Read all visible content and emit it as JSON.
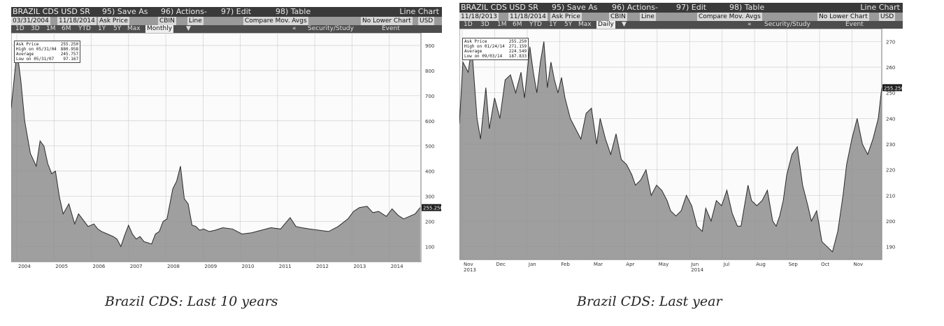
{
  "charts": [
    {
      "header": {
        "security": "BRAZIL CDS USD SR",
        "save_as": "95) Save As",
        "actions": "96) Actions-",
        "edit": "97) Edit",
        "table": "98) Table",
        "chart_type": "Line Chart",
        "start_date": "03/31/2004",
        "end_date": "11/18/2014",
        "field": "Ask Price",
        "source": "CBIN",
        "style": "Line",
        "compare": "Compare Mov. Avgs",
        "lower_chart": "No Lower Chart",
        "currency": "USD",
        "ranges": [
          "1D",
          "3D",
          "1M",
          "6M",
          "YTD",
          "1Y",
          "5Y",
          "Max"
        ],
        "period": "Monthly",
        "security_study": "Security/Study",
        "event": "Event"
      },
      "legend": [
        {
          "label": "Ask Price",
          "value": "255.250"
        },
        {
          "label": "High on 05/31/04",
          "value": "880.958"
        },
        {
          "label": "Average",
          "value": "245.757"
        },
        {
          "label": "Low on 05/31/07",
          "value": "97.167"
        }
      ],
      "last_value_tag": "255.250",
      "caption": "Brazil CDS: Last 10 years"
    },
    {
      "header": {
        "security": "BRAZIL CDS USD SR",
        "save_as": "95) Save As",
        "actions": "96) Actions-",
        "edit": "97) Edit",
        "table": "98) Table",
        "chart_type": "Line Chart",
        "start_date": "11/18/2013",
        "end_date": "11/18/2014",
        "field": "Ask Price",
        "source": "CBIN",
        "style": "Line",
        "compare": "Compare Mov. Avgs",
        "lower_chart": "No Lower Chart",
        "currency": "USD",
        "ranges": [
          "1D",
          "3D",
          "1M",
          "6M",
          "YTD",
          "1Y",
          "5Y",
          "Max"
        ],
        "period": "Daily",
        "security_study": "Security/Study",
        "event": "Event"
      },
      "legend": [
        {
          "label": "Ask Price",
          "value": "255.250"
        },
        {
          "label": "High on 01/24/14",
          "value": "271.159"
        },
        {
          "label": "Average",
          "value": "224.549"
        },
        {
          "label": "Low on 09/03/14",
          "value": "187.833"
        }
      ],
      "last_value_tag": "255.250",
      "caption": "Brazil CDS: Last year"
    }
  ],
  "chart_data": [
    {
      "type": "area",
      "title": "Brazil CDS: Last 10 years",
      "series_label": "Ask Price",
      "x_tick_labels": [
        "2004",
        "2005",
        "2006",
        "2007",
        "2008",
        "2009",
        "2010",
        "2011",
        "2012",
        "2013",
        "2014"
      ],
      "y_tick_labels": [
        "100",
        "200",
        "300",
        "400",
        "500",
        "600",
        "700",
        "800",
        "900"
      ],
      "ylim": [
        40,
        950
      ],
      "xlim": [
        2004.25,
        2014.9
      ],
      "grid": true,
      "legend_position": "top-left",
      "x": [
        2004.25,
        2004.4,
        2004.5,
        2004.6,
        2004.75,
        2004.9,
        2005.0,
        2005.1,
        2005.2,
        2005.3,
        2005.4,
        2005.5,
        2005.6,
        2005.75,
        2005.9,
        2006.0,
        2006.1,
        2006.25,
        2006.4,
        2006.5,
        2006.6,
        2006.75,
        2006.9,
        2007.0,
        2007.1,
        2007.2,
        2007.3,
        2007.4,
        2007.5,
        2007.6,
        2007.7,
        2007.8,
        2007.9,
        2008.0,
        2008.1,
        2008.2,
        2008.3,
        2008.45,
        2008.55,
        2008.65,
        2008.75,
        2008.85,
        2008.95,
        2009.05,
        2009.15,
        2009.25,
        2009.4,
        2009.55,
        2009.75,
        2010.0,
        2010.25,
        2010.5,
        2010.75,
        2011.0,
        2011.25,
        2011.5,
        2011.65,
        2011.8,
        2012.0,
        2012.25,
        2012.5,
        2012.75,
        2013.0,
        2013.15,
        2013.3,
        2013.5,
        2013.65,
        2013.8,
        2014.0,
        2014.15,
        2014.3,
        2014.45,
        2014.6,
        2014.75,
        2014.88
      ],
      "values": [
        650,
        880,
        760,
        600,
        470,
        420,
        520,
        500,
        430,
        390,
        400,
        300,
        230,
        270,
        190,
        230,
        210,
        180,
        190,
        170,
        160,
        150,
        140,
        130,
        100,
        145,
        185,
        150,
        130,
        140,
        120,
        115,
        110,
        150,
        160,
        200,
        210,
        330,
        360,
        420,
        290,
        270,
        185,
        180,
        165,
        170,
        160,
        165,
        175,
        170,
        150,
        155,
        165,
        175,
        170,
        215,
        180,
        175,
        170,
        165,
        160,
        180,
        210,
        240,
        255,
        260,
        235,
        240,
        220,
        250,
        225,
        210,
        220,
        230,
        255
      ]
    },
    {
      "type": "area",
      "title": "Brazil CDS: Last year",
      "series_label": "Ask Price",
      "x_tick_labels": [
        "Nov 2013",
        "Dec",
        "Jan",
        "Feb",
        "Mar",
        "Apr",
        "May",
        "Jun 2014",
        "Jul",
        "Aug",
        "Sep",
        "Oct",
        "Nov"
      ],
      "y_tick_labels": [
        "190",
        "200",
        "210",
        "220",
        "230",
        "240",
        "250",
        "260",
        "270"
      ],
      "ylim": [
        185,
        275
      ],
      "xlim": [
        0,
        12
      ],
      "grid": true,
      "legend_position": "top-left",
      "x": [
        0.0,
        0.1,
        0.25,
        0.35,
        0.5,
        0.6,
        0.75,
        0.85,
        1.0,
        1.15,
        1.3,
        1.45,
        1.6,
        1.75,
        1.85,
        2.0,
        2.1,
        2.2,
        2.3,
        2.4,
        2.5,
        2.6,
        2.7,
        2.8,
        2.9,
        3.0,
        3.15,
        3.3,
        3.45,
        3.6,
        3.75,
        3.9,
        4.0,
        4.15,
        4.3,
        4.45,
        4.6,
        4.75,
        4.9,
        5.0,
        5.15,
        5.3,
        5.45,
        5.6,
        5.75,
        5.9,
        6.0,
        6.15,
        6.3,
        6.45,
        6.6,
        6.75,
        6.9,
        7.0,
        7.15,
        7.3,
        7.45,
        7.6,
        7.75,
        7.9,
        8.0,
        8.1,
        8.2,
        8.3,
        8.45,
        8.6,
        8.75,
        8.9,
        9.0,
        9.1,
        9.2,
        9.3,
        9.45,
        9.6,
        9.75,
        9.9,
        10.0,
        10.15,
        10.3,
        10.45,
        10.6,
        10.75,
        10.9,
        11.0,
        11.15,
        11.3,
        11.45,
        11.6,
        11.75,
        11.9,
        12.0
      ],
      "values": [
        238,
        262,
        258,
        268,
        240,
        232,
        252,
        236,
        248,
        240,
        255,
        257,
        250,
        258,
        248,
        268,
        258,
        250,
        262,
        270,
        252,
        262,
        255,
        250,
        256,
        248,
        240,
        236,
        232,
        242,
        244,
        230,
        240,
        232,
        226,
        234,
        224,
        222,
        218,
        214,
        216,
        220,
        210,
        214,
        212,
        208,
        204,
        202,
        204,
        210,
        206,
        198,
        196,
        205,
        200,
        208,
        206,
        212,
        203,
        198,
        198,
        206,
        214,
        208,
        206,
        208,
        212,
        200,
        198,
        202,
        208,
        218,
        226,
        229,
        214,
        206,
        200,
        204,
        192,
        190,
        188,
        196,
        210,
        222,
        232,
        240,
        230,
        226,
        232,
        240,
        252
      ]
    }
  ]
}
